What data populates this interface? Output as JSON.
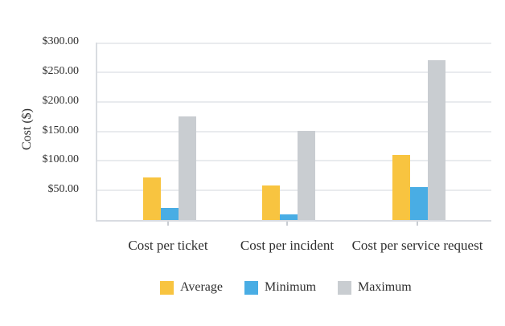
{
  "chart_data": {
    "type": "bar",
    "title": "",
    "xlabel": "",
    "ylabel": "Cost ($)",
    "ylim": [
      0,
      300
    ],
    "grid": true,
    "legend_position": "bottom",
    "categories": [
      "Cost per ticket",
      "Cost per incident",
      "Cost per service request"
    ],
    "series": [
      {
        "name": "Average",
        "color": "#F8C440",
        "values": [
          72,
          58,
          110
        ]
      },
      {
        "name": "Minimum",
        "color": "#49ADE4",
        "values": [
          20,
          10,
          55
        ]
      },
      {
        "name": "Maximum",
        "color": "#C9CDD1",
        "values": [
          175,
          150,
          270
        ]
      }
    ],
    "yticks": [
      {
        "value": 300,
        "label": "$300.00"
      },
      {
        "value": 250,
        "label": "$250.00"
      },
      {
        "value": 200,
        "label": "$200.00"
      },
      {
        "value": 150,
        "label": "$150.00"
      },
      {
        "value": 100,
        "label": "$100.00"
      },
      {
        "value": 50,
        "label": "$50.00"
      }
    ]
  },
  "colors": {
    "background": "#ffffff",
    "gridline": "#e9ebee",
    "axis_line": "#d9dce1",
    "tick_mark": "#c8ccd2",
    "text": "#2f2f2f"
  }
}
